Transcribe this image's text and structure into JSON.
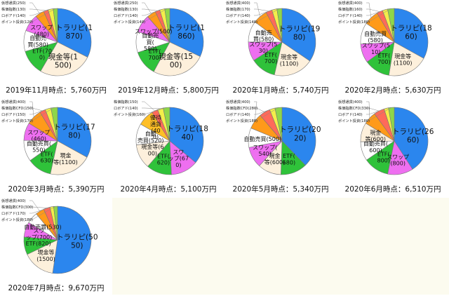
{
  "colors": {
    "トラリピ": "#2b86ee",
    "現金等": "#fdf0dc",
    "ETF": "#2fc23a",
    "自動売買": "#ffffff",
    "スワップ": "#ee6ff0",
    "優待": "#ffbf26",
    "仮想通貨": "#ff9a1a",
    "株価指数": "#ff6a5a",
    "株価指数CFD": "#ff6a5a",
    "ロボアド": "#f3ee4a",
    "ポイント投資": "#8ed64a"
  },
  "chart_data": [
    {
      "type": "pie",
      "title": "2019年11月時点：5,760万円",
      "slices": [
        {
          "name": "トラリピ",
          "value": 1870,
          "label": "トラリピ(1\n870)"
        },
        {
          "name": "現金等",
          "value": 1500,
          "label": "現金等(1\n500)"
        },
        {
          "name": "ETF",
          "value": 700,
          "label": "ETF(70\n0)"
        },
        {
          "name": "自動売買",
          "value": 580,
          "label": "自動売\n買(580)"
        },
        {
          "name": "スワップ",
          "value": 480,
          "label": "スワップ\n(480)"
        },
        {
          "name": "仮想通貨",
          "value": 250,
          "label": "仮想通貨(250)"
        },
        {
          "name": "株価指数",
          "value": 130,
          "label": "株価指数(130)"
        },
        {
          "name": "ロボアド",
          "value": 140,
          "label": "ロボアド(140)"
        },
        {
          "name": "ポイント投資",
          "value": 120,
          "label": "ポイント投資(120)"
        }
      ]
    },
    {
      "type": "pie",
      "title": "2019年12月時点：5,800万円",
      "slices": [
        {
          "name": "トラリピ",
          "value": 1860,
          "label": "トラリピ(1\n860)"
        },
        {
          "name": "現金等",
          "value": 1500,
          "label": "現金等(15\n00)"
        },
        {
          "name": "ETF",
          "value": 700,
          "label": "ETF(\n700)"
        },
        {
          "name": "自動売買",
          "value": 580,
          "label": "自動売\n買(\n580)"
        },
        {
          "name": "スワップ",
          "value": 500,
          "label": "スワップ(500)"
        },
        {
          "name": "仮想通貨",
          "value": 250,
          "label": "仮想通貨(250)"
        },
        {
          "name": "株価指数",
          "value": 130,
          "label": "株価指数(130)"
        },
        {
          "name": "ロボアド",
          "value": 140,
          "label": "ロボアド(140)"
        },
        {
          "name": "ポイント投資",
          "value": 140,
          "label": "ポイント投資(140)"
        }
      ]
    },
    {
      "type": "pie",
      "title": "2020年1月時点：5,740万円",
      "slices": [
        {
          "name": "トラリピ",
          "value": 1980,
          "label": "トラリピ(19\n80)"
        },
        {
          "name": "現金等",
          "value": 1100,
          "label": "現金等\n(1100)"
        },
        {
          "name": "ETF",
          "value": 700,
          "label": "ETF(\n700)"
        },
        {
          "name": "スワップ",
          "value": 530,
          "label": "スワップ(5\n30)"
        },
        {
          "name": "自動売買",
          "value": 580,
          "label": "自動売\n買(580)"
        },
        {
          "name": "仮想通貨",
          "value": 400,
          "label": "仮想通貨(400)"
        },
        {
          "name": "株価指数",
          "value": 170,
          "label": "株価指数(170)"
        },
        {
          "name": "ロボアド",
          "value": 140,
          "label": "ロボアド(140)"
        },
        {
          "name": "ポイント投資",
          "value": 140,
          "label": "ポイント投資(140)"
        }
      ]
    },
    {
      "type": "pie",
      "title": "2020年2月時点：5,630万円",
      "slices": [
        {
          "name": "トラリピ",
          "value": 1860,
          "label": "トラリピ(18\n60)"
        },
        {
          "name": "現金等",
          "value": 1100,
          "label": "現金等\n(1100)"
        },
        {
          "name": "ETF",
          "value": 700,
          "label": "ETF(\n700)"
        },
        {
          "name": "スワップ",
          "value": 510,
          "label": "スワップ(5\n10)"
        },
        {
          "name": "自動売買",
          "value": 580,
          "label": "自動売買\n(580)"
        },
        {
          "name": "仮想通貨",
          "value": 400,
          "label": "仮想通貨(400)"
        },
        {
          "name": "株価指数",
          "value": 160,
          "label": "株価指数(160)"
        },
        {
          "name": "ロボアド",
          "value": 140,
          "label": "ロボアド(140)"
        },
        {
          "name": "ポイント投資",
          "value": 180,
          "label": "ポイント投資(180)"
        }
      ]
    },
    {
      "type": "pie",
      "title": "2020年3月時点：5,390万円",
      "slices": [
        {
          "name": "トラリピ",
          "value": 1780,
          "label": "トラリピ(17\n80)"
        },
        {
          "name": "現金等",
          "value": 1100,
          "label": "現金\n等(1100)"
        },
        {
          "name": "ETF",
          "value": 630,
          "label": "ETF(\n630)"
        },
        {
          "name": "自動売買",
          "value": 550,
          "label": "自動売買(\n550)"
        },
        {
          "name": "スワップ",
          "value": 460,
          "label": "スワップ\n(460)"
        },
        {
          "name": "仮想通貨",
          "value": 400,
          "label": "仮想通貨(400)"
        },
        {
          "name": "株価指数CFD",
          "value": 150,
          "label": "株価指数CFD(150)"
        },
        {
          "name": "ロボアド",
          "value": 150,
          "label": "ロボアド(150)"
        },
        {
          "name": "ポイント投資",
          "value": 170,
          "label": "ポイント投資(170)"
        }
      ]
    },
    {
      "type": "pie",
      "title": "2020年4月時点：5,100万円",
      "slices": [
        {
          "name": "トラリピ",
          "value": 1840,
          "label": "トラリピ(18\n40)"
        },
        {
          "name": "スワップ",
          "value": 670,
          "label": "スワ\nップ(67\n0)"
        },
        {
          "name": "ETF",
          "value": 620,
          "label": "ETF(\n620)"
        },
        {
          "name": "現金等",
          "value": 600,
          "label": "現金等(6\n00)"
        },
        {
          "name": "自動売買",
          "value": 520,
          "label": "自動\n売買(520)"
        },
        {
          "name": "優待",
          "value": 400,
          "label": "優待\n通貨\n(40\n0)"
        },
        {
          "name": "株価指数",
          "value": 150,
          "label": "株価指数(150)"
        },
        {
          "name": "ロボアド",
          "value": 140,
          "label": "ロボアド(140)"
        },
        {
          "name": "ポイント投資",
          "value": 160,
          "label": "ポイント投資(160)"
        }
      ]
    },
    {
      "type": "pie",
      "title": "2020年5月時点：5,340万円",
      "slices": [
        {
          "name": "トラリピ",
          "value": 2020,
          "label": "トラリピ(20\n20)"
        },
        {
          "name": "ETF",
          "value": 680,
          "label": "ETF(\n680)"
        },
        {
          "name": "現金等",
          "value": 600,
          "label": "現金\n等(600)"
        },
        {
          "name": "スワップ",
          "value": 540,
          "label": "スワップ(\n540)"
        },
        {
          "name": "自動売買",
          "value": 500,
          "label": "自動売買(500)"
        },
        {
          "name": "仮想通貨",
          "value": 400,
          "label": "仮想通貨(400)"
        },
        {
          "name": "株価指数CFD",
          "value": 280,
          "label": "株価指数CFD(280)"
        },
        {
          "name": "ロボアド",
          "value": 140,
          "label": "ロボアド(140)"
        },
        {
          "name": "ポイント投資",
          "value": 180,
          "label": "ポイント投資(180)"
        }
      ]
    },
    {
      "type": "pie",
      "title": "2020年6月時点：6,510万円",
      "slices": [
        {
          "name": "トラリピ",
          "value": 2660,
          "label": "トラリピ(26\n60)"
        },
        {
          "name": "スワップ",
          "value": 800,
          "label": "スワップ\n(800)"
        },
        {
          "name": "ETF",
          "value": 800,
          "label": "ETF(\n800)"
        },
        {
          "name": "自動売買",
          "value": 600,
          "label": "自動売買(\n600)"
        },
        {
          "name": "現金等",
          "value": 600,
          "label": "現金\n等(600)"
        },
        {
          "name": "仮想通貨",
          "value": 400,
          "label": "仮想通貨(400)"
        },
        {
          "name": "株価指数CFD",
          "value": 330,
          "label": "株価指数CFD(330)"
        },
        {
          "name": "ロボアド",
          "value": 140,
          "label": "ロボアド(140)"
        },
        {
          "name": "ポイント投資",
          "value": 180,
          "label": "ポイント投資(180)"
        }
      ]
    },
    {
      "type": "pie",
      "title": "2020年7月時点：9,670万円",
      "slices": [
        {
          "name": "トラリピ",
          "value": 5050,
          "label": "トラリピ(50\n50)"
        },
        {
          "name": "現金等",
          "value": 1500,
          "label": "現金等\n(1500)"
        },
        {
          "name": "ETF",
          "value": 820,
          "label": "ETF(820)"
        },
        {
          "name": "スワップ",
          "value": 700,
          "label": "スワ\nップ(700)"
        },
        {
          "name": "自動売買",
          "value": 530,
          "label": "自動売買(530)"
        },
        {
          "name": "仮想通貨",
          "value": 400,
          "label": "仮想通貨(400)"
        },
        {
          "name": "株価指数CFD",
          "value": 300,
          "label": "株価指数CFD(300)"
        },
        {
          "name": "ロボアド",
          "value": 170,
          "label": "ロボアド(170)"
        },
        {
          "name": "ポイント投資",
          "value": 180,
          "label": "ポイント投資(180)"
        }
      ]
    }
  ]
}
